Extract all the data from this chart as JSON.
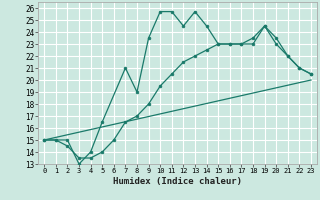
{
  "xlabel": "Humidex (Indice chaleur)",
  "bg_color": "#cce8e0",
  "line_color": "#1a7a6a",
  "grid_color": "#ffffff",
  "xlim": [
    -0.5,
    23.5
  ],
  "ylim": [
    13,
    26.5
  ],
  "yticks": [
    13,
    14,
    15,
    16,
    17,
    18,
    19,
    20,
    21,
    22,
    23,
    24,
    25,
    26
  ],
  "xticks": [
    0,
    1,
    2,
    3,
    4,
    5,
    6,
    7,
    8,
    9,
    10,
    11,
    12,
    13,
    14,
    15,
    16,
    17,
    18,
    19,
    20,
    21,
    22,
    23
  ],
  "line1_x": [
    0,
    1,
    2,
    3,
    4,
    5,
    7,
    8,
    9,
    10,
    11,
    12,
    13,
    14,
    15,
    16,
    17,
    18,
    19,
    20,
    21,
    22,
    23
  ],
  "line1_y": [
    15,
    15,
    15,
    13,
    14,
    16.5,
    21,
    19,
    23.5,
    25.7,
    25.7,
    24.5,
    25.7,
    24.5,
    23,
    23,
    23,
    23,
    24.5,
    23,
    22,
    21,
    20.5
  ],
  "line2_x": [
    0,
    1,
    2,
    3,
    4,
    5,
    6,
    7,
    8,
    9,
    10,
    11,
    12,
    13,
    14,
    15,
    16,
    17,
    18,
    19,
    20,
    21,
    22,
    23
  ],
  "line2_y": [
    15,
    15,
    14.5,
    13.5,
    13.5,
    14,
    15,
    16.5,
    17,
    18,
    19.5,
    20.5,
    21.5,
    22,
    22.5,
    23,
    23,
    23,
    23.5,
    24.5,
    23.5,
    22,
    21,
    20.5
  ],
  "line3_x": [
    0,
    23
  ],
  "line3_y": [
    15,
    20
  ]
}
